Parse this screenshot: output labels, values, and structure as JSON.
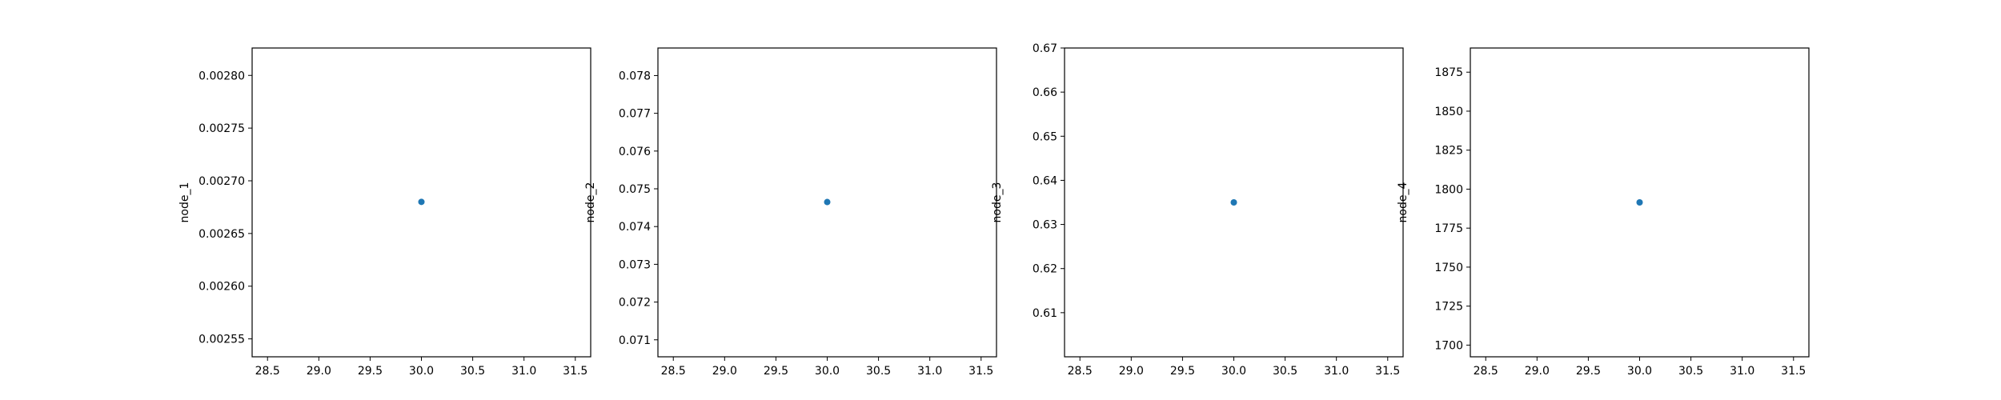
{
  "chart_data": [
    {
      "type": "scatter",
      "xlabel": "",
      "ylabel": "node_1",
      "xlim": [
        28.35,
        31.65
      ],
      "ylim": [
        0.002533,
        0.002826
      ],
      "xticks": [
        "28.5",
        "29.0",
        "29.5",
        "30.0",
        "30.5",
        "31.0",
        "31.5"
      ],
      "yticks": [
        "0.00255",
        "0.00260",
        "0.00265",
        "0.00270",
        "0.00275",
        "0.00280"
      ],
      "points": [
        {
          "x": 30.0,
          "y": 0.00268
        }
      ],
      "color": "#1f77b4",
      "grid": false
    },
    {
      "type": "scatter",
      "xlabel": "",
      "ylabel": "node_2",
      "xlim": [
        28.35,
        31.65
      ],
      "ylim": [
        0.07055,
        0.07873
      ],
      "xticks": [
        "28.5",
        "29.0",
        "29.5",
        "30.0",
        "30.5",
        "31.0",
        "31.5"
      ],
      "yticks": [
        "0.071",
        "0.072",
        "0.073",
        "0.074",
        "0.075",
        "0.076",
        "0.077",
        "0.078"
      ],
      "points": [
        {
          "x": 30.0,
          "y": 0.07465
        }
      ],
      "color": "#1f77b4",
      "grid": false
    },
    {
      "type": "scatter",
      "xlabel": "",
      "ylabel": "node_3",
      "xlim": [
        28.35,
        31.65
      ],
      "ylim": [
        0.6,
        0.67
      ],
      "xticks": [
        "28.5",
        "29.0",
        "29.5",
        "30.0",
        "30.5",
        "31.0",
        "31.5"
      ],
      "yticks": [
        "0.61",
        "0.62",
        "0.63",
        "0.64",
        "0.65",
        "0.66",
        "0.67"
      ],
      "points": [
        {
          "x": 30.0,
          "y": 0.635
        }
      ],
      "color": "#1f77b4",
      "grid": false
    },
    {
      "type": "scatter",
      "xlabel": "",
      "ylabel": "node_4",
      "xlim": [
        28.35,
        31.65
      ],
      "ylim": [
        1692.5,
        1890.5
      ],
      "xticks": [
        "28.5",
        "29.0",
        "29.5",
        "30.0",
        "30.5",
        "31.0",
        "31.5"
      ],
      "yticks": [
        "1700",
        "1725",
        "1750",
        "1775",
        "1800",
        "1825",
        "1850",
        "1875"
      ],
      "points": [
        {
          "x": 30.0,
          "y": 1791.5
        }
      ],
      "color": "#1f77b4",
      "grid": false
    }
  ]
}
